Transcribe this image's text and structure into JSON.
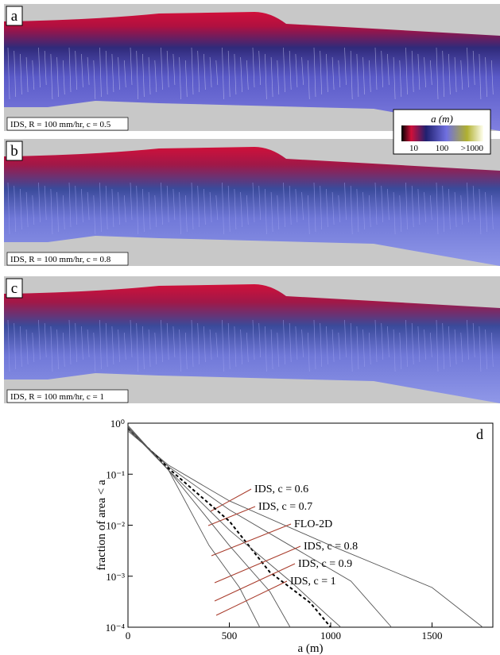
{
  "panels": [
    {
      "letter": "a",
      "caption": "IDS, R = 100 mm/hr, c = 0.5"
    },
    {
      "letter": "b",
      "caption": "IDS, R = 100 mm/hr, c = 0.8"
    },
    {
      "letter": "c",
      "caption": "IDS, R = 100 mm/hr, c = 1"
    }
  ],
  "colorbar": {
    "title": "a (m)",
    "ticks": [
      "10",
      "100",
      ">1000"
    ]
  },
  "chart_data": {
    "type": "line",
    "panel_letter": "d",
    "x_label": "a (m)",
    "y_label": "fraction of area < a",
    "xlim": [
      0,
      1800
    ],
    "xticks": [
      0,
      500,
      1000,
      1500
    ],
    "ylim": [
      0.0001,
      1
    ],
    "log_y": true,
    "yticks": [
      {
        "value": 1,
        "label": "10⁰"
      },
      {
        "value": 0.1,
        "label": "10⁻¹"
      },
      {
        "value": 0.01,
        "label": "10⁻²"
      },
      {
        "value": 0.001,
        "label": "10⁻³"
      },
      {
        "value": 0.0001,
        "label": "10⁻⁴"
      }
    ],
    "series": [
      {
        "name": "IDS, c = 0.6",
        "color": "#555555",
        "dashed": false,
        "x": [
          0,
          200,
          500,
          1000,
          1500,
          1750
        ],
        "values": [
          0.7,
          0.15,
          0.03,
          0.004,
          0.0006,
          0.0001
        ]
      },
      {
        "name": "IDS, c = 0.7",
        "color": "#555555",
        "dashed": false,
        "x": [
          0,
          200,
          500,
          800,
          1100,
          1300
        ],
        "values": [
          0.75,
          0.14,
          0.02,
          0.004,
          0.0008,
          0.0001
        ]
      },
      {
        "name": "FLO-2D",
        "color": "#000000",
        "dashed": true,
        "x": [
          0,
          200,
          500,
          700,
          900,
          1000
        ],
        "values": [
          0.8,
          0.13,
          0.012,
          0.0012,
          0.0003,
          0.0001
        ]
      },
      {
        "name": "IDS, c = 0.8",
        "color": "#555555",
        "dashed": false,
        "x": [
          0,
          200,
          500,
          800,
          1000,
          1050
        ],
        "values": [
          0.8,
          0.12,
          0.008,
          0.0008,
          0.00015,
          0.0001
        ]
      },
      {
        "name": "IDS, c = 0.9",
        "color": "#555555",
        "dashed": false,
        "x": [
          0,
          200,
          500,
          700,
          800
        ],
        "values": [
          0.85,
          0.12,
          0.004,
          0.0005,
          0.0001
        ]
      },
      {
        "name": "IDS, c = 1",
        "color": "#555555",
        "dashed": false,
        "x": [
          0,
          200,
          400,
          550,
          650
        ],
        "values": [
          0.9,
          0.12,
          0.004,
          0.0006,
          0.0001
        ]
      }
    ]
  }
}
